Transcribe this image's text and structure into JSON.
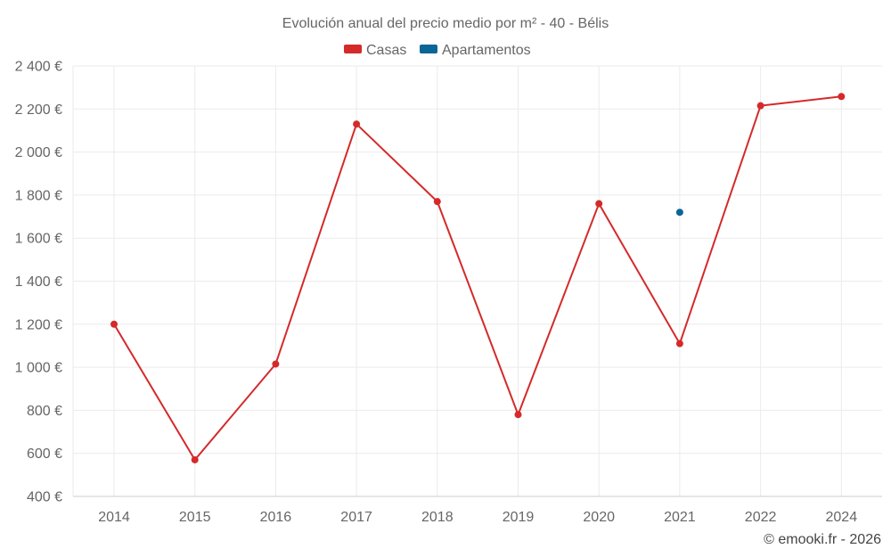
{
  "chart_data": {
    "type": "line",
    "title": "Evolución anual del precio medio por m² - 40 - Bélis",
    "categories": [
      "2014",
      "2015",
      "2016",
      "2017",
      "2018",
      "2019",
      "2020",
      "2021",
      "2022",
      "2024"
    ],
    "series": [
      {
        "name": "Casas",
        "color": "#d42a2a",
        "values": [
          1200,
          570,
          1015,
          2130,
          1770,
          780,
          1760,
          1110,
          2215,
          2258
        ]
      },
      {
        "name": "Apartamentos",
        "color": "#0b6596",
        "values": [
          null,
          null,
          null,
          null,
          null,
          null,
          null,
          1720,
          null,
          null
        ]
      }
    ],
    "ylim": [
      400,
      2400
    ],
    "yticks": [
      400,
      600,
      800,
      1000,
      1200,
      1400,
      1600,
      1800,
      2000,
      2200,
      2400
    ],
    "ytick_labels": [
      "400 €",
      "600 €",
      "800 €",
      "1 000 €",
      "1 200 €",
      "1 400 €",
      "1 600 €",
      "1 800 €",
      "2 000 €",
      "2 200 €",
      "2 400 €"
    ],
    "xlabel": "",
    "ylabel": "",
    "grid": true,
    "legend_position": "top-center"
  },
  "credit": "© emooki.fr - 2026"
}
